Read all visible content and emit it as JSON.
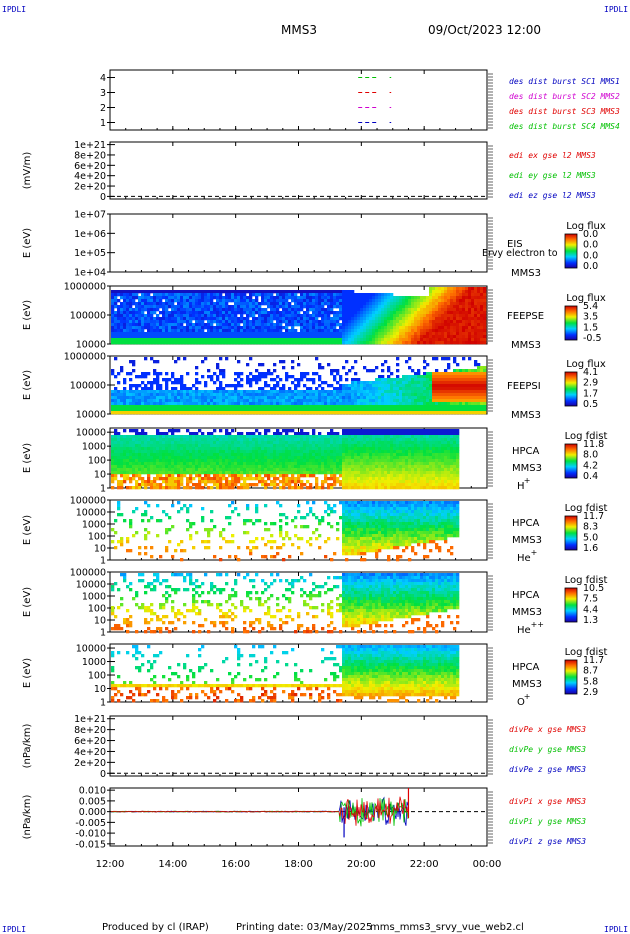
{
  "header": {
    "corner_left": "IPDLI",
    "corner_right": "IPDLI",
    "spacecraft": "MMS3",
    "datetime": "09/Oct/2023 12:00"
  },
  "footer": {
    "corner_left": "IPDLI",
    "corner_right": "IPDLI",
    "produced_by": "Produced by  cl (IRAP)",
    "printing_date": "Printing date: 03/May/2025",
    "script_name": "mms_mms3_srvy_vue_web2.cl"
  },
  "colors": {
    "red": "#e00000",
    "green": "#00c000",
    "blue": "#0000c0",
    "magenta": "#d000d0"
  },
  "chart_data": [
    {
      "type": "line",
      "panel": "burst",
      "ylim": [
        0.5,
        4.5
      ],
      "yticks": [
        "4",
        "3",
        "2",
        "1"
      ],
      "ytick_values": [
        4,
        3,
        2,
        1
      ],
      "ylabel": "",
      "series": [
        {
          "name": "des dist burst SC1 MMS1",
          "color": "#0000c0",
          "y": 1,
          "segments": [
            [
              19.9,
              20.5
            ],
            [
              20.9,
              20.95
            ]
          ]
        },
        {
          "name": "des dist burst SC2 MMS2",
          "color": "#d000d0",
          "y": 2,
          "segments": [
            [
              19.9,
              20.5
            ],
            [
              20.9,
              20.95
            ]
          ]
        },
        {
          "name": "des dist burst SC3 MMS3",
          "color": "#e00000",
          "y": 3,
          "segments": [
            [
              19.9,
              20.5
            ],
            [
              20.9,
              20.95
            ]
          ]
        },
        {
          "name": "des dist burst SC4 MMS4",
          "color": "#00c000",
          "y": 4,
          "segments": [
            [
              19.9,
              20.5
            ],
            [
              20.9,
              20.95
            ]
          ]
        }
      ]
    },
    {
      "type": "line",
      "panel": "edi",
      "ylabel": "(mV/m)",
      "yticks": [
        "1e+21",
        "8e+20",
        "6e+20",
        "4e+20",
        "2e+20",
        "0"
      ],
      "ytick_values": [
        1,
        0.8,
        0.6,
        0.4,
        0.2,
        0
      ],
      "ylim": [
        -0.05,
        1.05
      ],
      "series": [
        {
          "name": "edi ex gse l2 MMS3",
          "color": "#e00000"
        },
        {
          "name": "edi ey gse l2 MMS3",
          "color": "#00c000"
        },
        {
          "name": "edi ez gse l2 MMS3",
          "color": "#0000c0"
        }
      ]
    },
    {
      "type": "heatmap",
      "panel": "eis",
      "ylabel": "E (eV)",
      "yticks": [
        "1e+07",
        "1e+06",
        "1e+05",
        "1e+04"
      ],
      "ytick_values": [
        7,
        6,
        5,
        4
      ],
      "ylim": [
        4,
        7
      ],
      "labels": [
        "EIS",
        "MMS3"
      ],
      "overlay_text": "Ervy electron to",
      "colorbar": {
        "title": "Log flux",
        "ticks": [
          "0.0",
          "0.0",
          "0.0",
          "0.0"
        ]
      }
    },
    {
      "type": "heatmap",
      "panel": "feeps_e",
      "ylabel": "E (eV)",
      "yticks": [
        "1000000",
        "100000",
        "10000"
      ],
      "ytick_values": [
        6,
        5,
        4
      ],
      "ylim": [
        4,
        6
      ],
      "labels": [
        "FEEPSE",
        "MMS3"
      ],
      "colorbar": {
        "title": "Log flux",
        "ticks": [
          "5.4",
          "3.5",
          "1.5",
          "-0.5"
        ]
      }
    },
    {
      "type": "heatmap",
      "panel": "feeps_i",
      "ylabel": "E (eV)",
      "yticks": [
        "1000000",
        "100000",
        "10000"
      ],
      "ytick_values": [
        6,
        5,
        4
      ],
      "ylim": [
        4,
        6
      ],
      "labels": [
        "FEEPSI",
        "MMS3"
      ],
      "colorbar": {
        "title": "Log flux",
        "ticks": [
          "4.1",
          "2.9",
          "1.7",
          "0.5"
        ]
      }
    },
    {
      "type": "heatmap",
      "panel": "hpca_h",
      "ylabel": "E (eV)",
      "yticks": [
        "10000",
        "1000",
        "100",
        "10",
        "1"
      ],
      "ytick_values": [
        4,
        3,
        2,
        1,
        0
      ],
      "ylim": [
        0,
        4.3
      ],
      "labels": [
        "HPCA",
        "MMS3"
      ],
      "species": "H",
      "charge": "+",
      "colorbar": {
        "title": "Log fdist",
        "ticks": [
          "11.8",
          "8.0",
          "4.2",
          "0.4"
        ]
      }
    },
    {
      "type": "heatmap",
      "panel": "hpca_he1",
      "ylabel": "E (eV)",
      "yticks": [
        "100000",
        "10000",
        "1000",
        "100",
        "10",
        "1"
      ],
      "ytick_values": [
        5,
        4,
        3,
        2,
        1,
        0
      ],
      "ylim": [
        0,
        5
      ],
      "labels": [
        "HPCA",
        "MMS3"
      ],
      "species": "He",
      "charge": "+",
      "colorbar": {
        "title": "Log fdist",
        "ticks": [
          "11.7",
          "8.3",
          "5.0",
          "1.6"
        ]
      }
    },
    {
      "type": "heatmap",
      "panel": "hpca_he2",
      "ylabel": "E (eV)",
      "yticks": [
        "100000",
        "10000",
        "1000",
        "100",
        "10",
        "1"
      ],
      "ytick_values": [
        5,
        4,
        3,
        2,
        1,
        0
      ],
      "ylim": [
        0,
        5
      ],
      "labels": [
        "HPCA",
        "MMS3"
      ],
      "species": "He",
      "charge": "++",
      "colorbar": {
        "title": "Log fdist",
        "ticks": [
          "10.5",
          "7.5",
          "4.4",
          "1.3"
        ]
      }
    },
    {
      "type": "heatmap",
      "panel": "hpca_o",
      "ylabel": "E (eV)",
      "yticks": [
        "10000",
        "1000",
        "100",
        "10",
        "1"
      ],
      "ytick_values": [
        4,
        3,
        2,
        1,
        0
      ],
      "ylim": [
        0,
        4.3
      ],
      "labels": [
        "HPCA",
        "MMS3"
      ],
      "species": "O",
      "charge": "+",
      "colorbar": {
        "title": "Log fdist",
        "ticks": [
          "11.7",
          "8.7",
          "5.8",
          "2.9"
        ]
      }
    },
    {
      "type": "line",
      "panel": "divpe",
      "ylabel": "(nPa/km)",
      "yticks": [
        "1e+21",
        "8e+20",
        "6e+20",
        "4e+20",
        "2e+20",
        "0"
      ],
      "ytick_values": [
        1,
        0.8,
        0.6,
        0.4,
        0.2,
        0
      ],
      "ylim": [
        -0.05,
        1.05
      ],
      "series": [
        {
          "name": "divPe x gse MMS3",
          "color": "#e00000"
        },
        {
          "name": "divPe y gse MMS3",
          "color": "#00c000"
        },
        {
          "name": "divPe z gse MMS3",
          "color": "#0000c0"
        }
      ]
    },
    {
      "type": "line",
      "panel": "divpi",
      "ylabel": "(nPa/km)",
      "yticks": [
        "0.010",
        "0.005",
        "0.000",
        "-0.005",
        "-0.010",
        "-0.015"
      ],
      "ytick_values": [
        0.01,
        0.005,
        0,
        -0.005,
        -0.01,
        -0.015
      ],
      "ylim": [
        -0.016,
        0.011
      ],
      "series": [
        {
          "name": "divPi x gse MMS3",
          "color": "#e00000"
        },
        {
          "name": "divPi y gse MMS3",
          "color": "#00c000"
        },
        {
          "name": "divPi z gse MMS3",
          "color": "#0000c0"
        }
      ]
    }
  ],
  "xaxis": {
    "ticks": [
      "12:00",
      "14:00",
      "16:00",
      "18:00",
      "20:00",
      "22:00",
      "00:00"
    ],
    "tick_hours": [
      12,
      14,
      16,
      18,
      20,
      22,
      24
    ],
    "xlim_hours": [
      12,
      24
    ]
  }
}
